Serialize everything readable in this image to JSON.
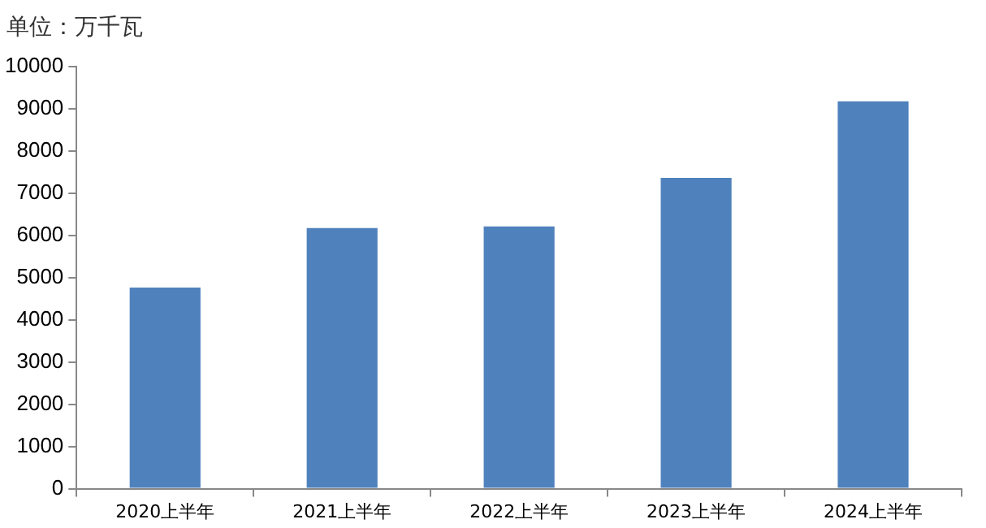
{
  "chart_data": {
    "type": "bar",
    "ylabel": "单位：万千瓦",
    "categories": [
      "2020上半年",
      "2021上半年",
      "2022上半年",
      "2023上半年",
      "2024上半年"
    ],
    "values": [
      4760,
      6170,
      6210,
      7360,
      9170
    ],
    "color": "#4f81bd",
    "ylim": [
      0,
      10000
    ],
    "yticks": [
      0,
      1000,
      2000,
      3000,
      4000,
      5000,
      6000,
      7000,
      8000,
      9000,
      10000
    ],
    "grid": false,
    "legend": false
  }
}
